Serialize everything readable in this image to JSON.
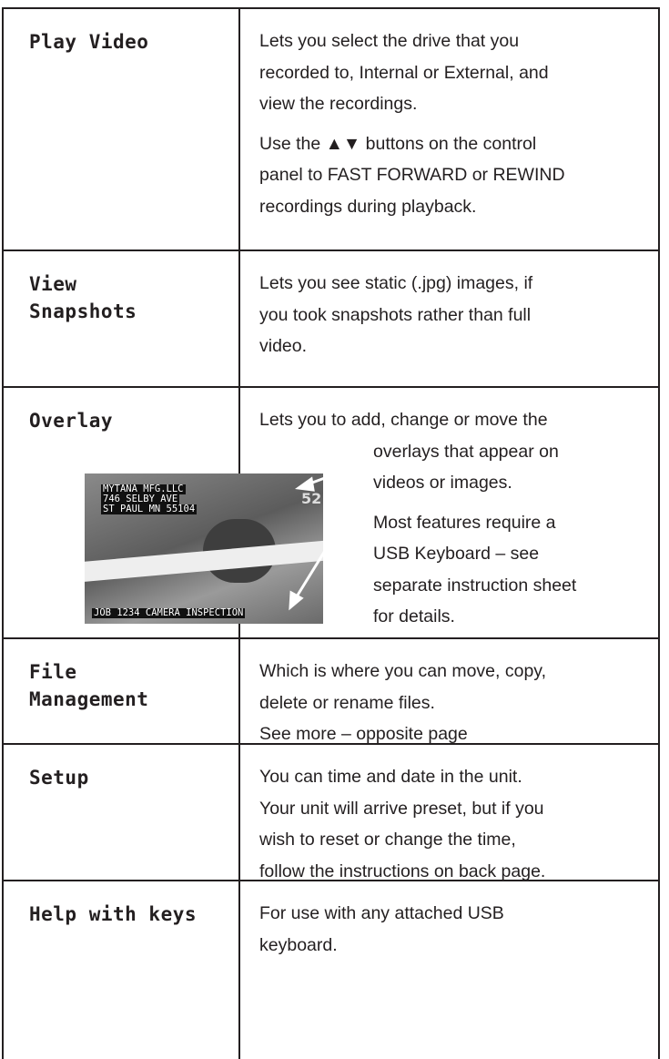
{
  "table": {
    "rows": [
      {
        "label": [
          "Play Video"
        ],
        "description": [
          [
            "Lets you select the drive that you",
            "recorded to, Internal or External, and",
            "view the recordings."
          ],
          [
            "Use the  ▲▼ buttons on the control",
            "panel to FAST FORWARD or REWIND",
            "recordings during playback."
          ]
        ]
      },
      {
        "label": [
          "View",
          "Snapshots"
        ],
        "description": [
          [
            "Lets  you see static (.jpg) images, if",
            "you took snapshots rather than full",
            "video."
          ]
        ]
      },
      {
        "label": [
          "Overlay"
        ],
        "description": [
          [
            "Lets you to add, change or move the",
            "overlays that appear on",
            "videos or images."
          ],
          [
            "Most features require a",
            "USB Keyboard – see",
            "separate instruction sheet",
            "for details."
          ]
        ]
      },
      {
        "label": [
          "File",
          "Management"
        ],
        "description": [
          [
            "Which is where you can move, copy,",
            "delete or rename files.",
            "See more – opposite page"
          ]
        ]
      },
      {
        "label": [
          "Setup"
        ],
        "description": [
          [
            "You can time and date in the unit.",
            "Your unit will arrive preset, but if you",
            "wish to reset or change the time,",
            "follow the instructions on back page."
          ]
        ]
      },
      {
        "label": [
          "Help with keys"
        ],
        "description": [
          [
            "For use with any attached USB",
            "keyboard."
          ]
        ]
      }
    ]
  },
  "overlay_image": {
    "lines": [
      "MYTANA MFG.LLC",
      "746 SELBY AVE",
      "ST PAUL MN 55104"
    ],
    "corner": "52",
    "footer": "JOB 1234 CAMERA INSPECTION"
  }
}
